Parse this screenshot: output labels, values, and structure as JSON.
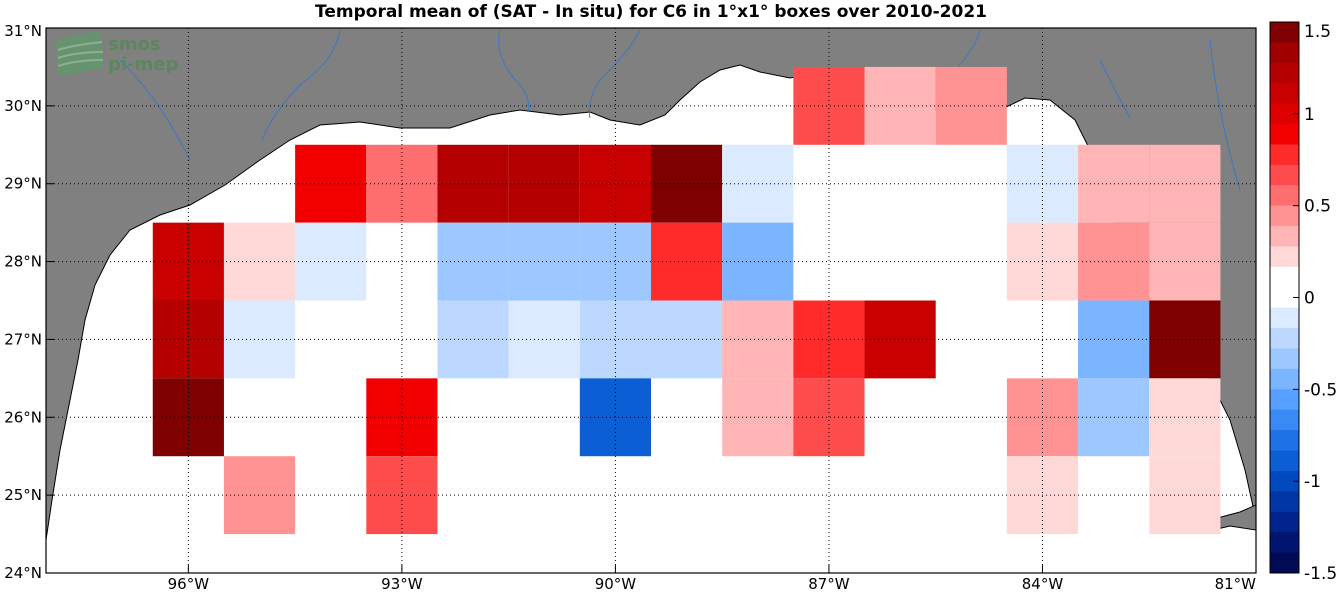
{
  "logo": {
    "line1": "smos",
    "line2": "pi-mep"
  },
  "chart_data": {
    "type": "heatmap",
    "title": "Temporal mean of (SAT - In situ) for C6 in 1°x1° boxes over 2010-2021",
    "x_ticks": [
      "96°W",
      "93°W",
      "90°W",
      "87°W",
      "84°W",
      "81°W"
    ],
    "y_ticks": [
      "24°N",
      "25°N",
      "26°N",
      "27°N",
      "28°N",
      "29°N",
      "30°N",
      "31°N"
    ],
    "xlim": [
      -98,
      -81
    ],
    "ylim": [
      24,
      31
    ],
    "x_tick_values": [
      -96,
      -93,
      -90,
      -87,
      -84,
      -81
    ],
    "y_tick_values": [
      24,
      25,
      26,
      27,
      28,
      29,
      30,
      31
    ],
    "grid": true,
    "colorbar": {
      "range": [
        -1.5,
        1.5
      ],
      "ticks": [
        "1.5",
        "1",
        "0.5",
        "0",
        "-0.5",
        "-1",
        "-1.5"
      ],
      "tick_values": [
        1.5,
        1,
        0.5,
        0,
        -0.5,
        -1,
        -1.5
      ],
      "colors_top_to_bottom": [
        "#7f0000",
        "#a00000",
        "#b40000",
        "#c80000",
        "#de0000",
        "#f20000",
        "#ff2a2a",
        "#ff4d4d",
        "#ff6e6e",
        "#ff9393",
        "#ffb5b5",
        "#ffd8d8",
        "#ffffff",
        "#ffffff",
        "#dbeaff",
        "#bcd8ff",
        "#9cc7ff",
        "#7bb4ff",
        "#58a0ff",
        "#3a8af5",
        "#1f72e6",
        "#0c5ed4",
        "#0049bf",
        "#0036a6",
        "#00248c",
        "#001470",
        "#000a55"
      ]
    },
    "boxes": [
      {
        "lon": -96,
        "lat": 28,
        "value": 1.1
      },
      {
        "lon": -96,
        "lat": 27,
        "value": 1.2
      },
      {
        "lon": -96,
        "lat": 26,
        "value": 1.4
      },
      {
        "lon": -95,
        "lat": 28,
        "value": 0.2
      },
      {
        "lon": -95,
        "lat": 27,
        "value": -0.15
      },
      {
        "lon": -95,
        "lat": 25,
        "value": 0.5
      },
      {
        "lon": -94,
        "lat": 29,
        "value": 0.85
      },
      {
        "lon": -94,
        "lat": 28,
        "value": -0.15
      },
      {
        "lon": -93,
        "lat": 29,
        "value": 0.55
      },
      {
        "lon": -93,
        "lat": 26,
        "value": 0.85
      },
      {
        "lon": -93,
        "lat": 25,
        "value": 0.65
      },
      {
        "lon": -92,
        "lat": 29,
        "value": 1.2
      },
      {
        "lon": -92,
        "lat": 28,
        "value": -0.35
      },
      {
        "lon": -92,
        "lat": 27,
        "value": -0.25
      },
      {
        "lon": -91,
        "lat": 29,
        "value": 1.2
      },
      {
        "lon": -91,
        "lat": 28,
        "value": -0.35
      },
      {
        "lon": -91,
        "lat": 27,
        "value": -0.15
      },
      {
        "lon": -90,
        "lat": 29,
        "value": 1.1
      },
      {
        "lon": -90,
        "lat": 28,
        "value": -0.35
      },
      {
        "lon": -90,
        "lat": 27,
        "value": -0.25
      },
      {
        "lon": -90,
        "lat": 26,
        "value": -0.85
      },
      {
        "lon": -89,
        "lat": 29,
        "value": 1.4
      },
      {
        "lon": -89,
        "lat": 28,
        "value": 0.75
      },
      {
        "lon": -89,
        "lat": 27,
        "value": -0.25
      },
      {
        "lon": -88,
        "lat": 29,
        "value": -0.15
      },
      {
        "lon": -88,
        "lat": 28,
        "value": -0.4
      },
      {
        "lon": -88,
        "lat": 27,
        "value": 0.3
      },
      {
        "lon": -88,
        "lat": 26,
        "value": 0.3
      },
      {
        "lon": -87,
        "lat": 30,
        "value": 0.65
      },
      {
        "lon": -87,
        "lat": 27,
        "value": 0.8
      },
      {
        "lon": -87,
        "lat": 26,
        "value": 0.7
      },
      {
        "lon": -86,
        "lat": 30,
        "value": 0.3
      },
      {
        "lon": -86,
        "lat": 27,
        "value": 1.1
      },
      {
        "lon": -85,
        "lat": 30,
        "value": 0.5
      },
      {
        "lon": -84,
        "lat": 29,
        "value": -0.15
      },
      {
        "lon": -84,
        "lat": 28,
        "value": 0.2
      },
      {
        "lon": -84,
        "lat": 26,
        "value": 0.4
      },
      {
        "lon": -84,
        "lat": 25,
        "value": 0.2
      },
      {
        "lon": -83,
        "lat": 29,
        "value": 0.3
      },
      {
        "lon": -83,
        "lat": 28,
        "value": 0.45
      },
      {
        "lon": -83,
        "lat": 27,
        "value": -0.45
      },
      {
        "lon": -83,
        "lat": 26,
        "value": -0.3
      },
      {
        "lon": -82,
        "lat": 27,
        "value": 1.4
      },
      {
        "lon": -82,
        "lat": 26,
        "value": 0.2
      },
      {
        "lon": -82,
        "lat": 25,
        "value": 0.2
      },
      {
        "lon": -82,
        "lat": 29,
        "value": 0.3
      },
      {
        "lon": -82,
        "lat": 28,
        "value": 0.3
      }
    ]
  }
}
